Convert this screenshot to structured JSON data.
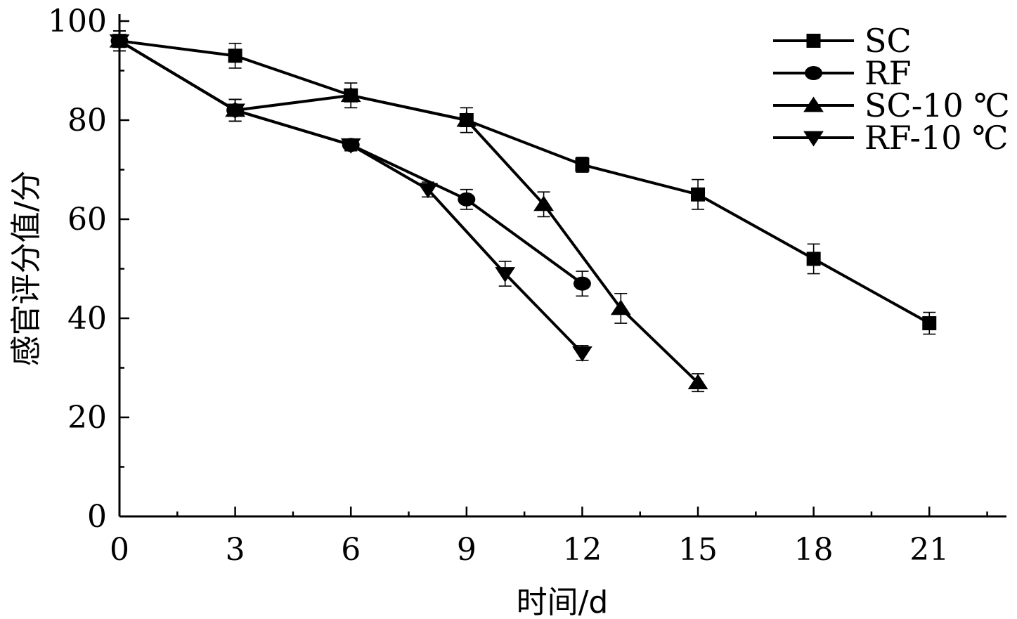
{
  "chart_data": {
    "type": "line",
    "xlabel": "时间/d",
    "ylabel": "感官评分值/分",
    "xlim": [
      0,
      23
    ],
    "ylim": [
      0,
      100
    ],
    "xticks": [
      0,
      3,
      6,
      9,
      12,
      15,
      18,
      21
    ],
    "yticks": [
      0,
      20,
      40,
      60,
      80,
      100
    ],
    "legend": "top-right",
    "grid": false,
    "series": [
      {
        "name": "SC",
        "marker": "square",
        "x": [
          0,
          3,
          6,
          9,
          12,
          15,
          18,
          21
        ],
        "y": [
          96,
          93,
          85,
          80,
          71,
          65,
          52,
          39
        ],
        "err": [
          2,
          2.5,
          2.5,
          2.5,
          1.5,
          3,
          3,
          2.2
        ]
      },
      {
        "name": "RF",
        "marker": "circle",
        "x": [
          0,
          3,
          6,
          9,
          12
        ],
        "y": [
          96,
          82,
          75,
          64,
          47
        ],
        "err": [
          2,
          2.2,
          1.2,
          2,
          2.5
        ]
      },
      {
        "name": "SC-10 ℃",
        "marker": "triangle-up",
        "x": [
          0,
          3,
          6,
          9,
          11,
          13,
          15
        ],
        "y": [
          96,
          82,
          85,
          80,
          63,
          42,
          27
        ],
        "err": [
          2,
          2.2,
          2.5,
          2.5,
          2.5,
          3,
          1.8
        ]
      },
      {
        "name": "RF-10 ℃",
        "marker": "triangle-down",
        "x": [
          0,
          3,
          6,
          8,
          10,
          12
        ],
        "y": [
          96,
          82,
          75,
          66,
          49,
          33
        ],
        "err": [
          2,
          2.2,
          1.2,
          1.5,
          2.5,
          1.5
        ]
      }
    ]
  }
}
